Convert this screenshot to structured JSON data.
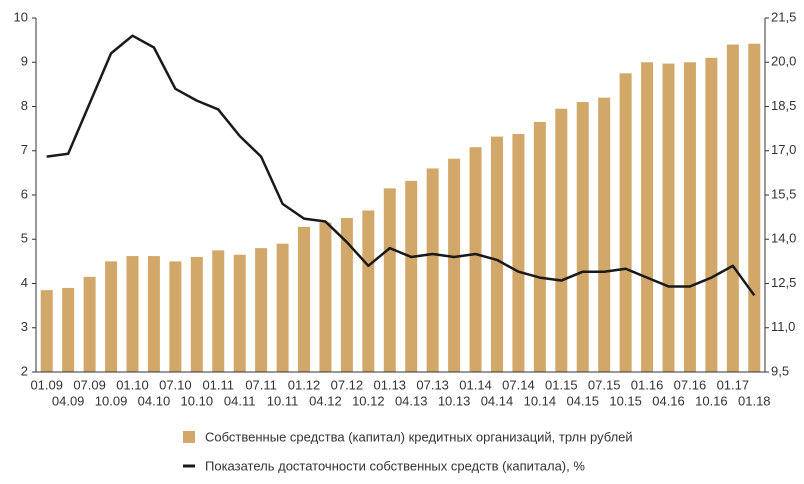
{
  "chart_data": {
    "type": "bar-line",
    "categories": [
      "01.09",
      "04.09",
      "07.09",
      "10.09",
      "01.10",
      "04.10",
      "07.10",
      "10.10",
      "01.11",
      "04.11",
      "07.11",
      "10.11",
      "01.12",
      "04.12",
      "07.12",
      "10.12",
      "01.13",
      "04.13",
      "07.13",
      "10.13",
      "01.14",
      "04.14",
      "07.14",
      "10.14",
      "01.15",
      "04.15",
      "07.15",
      "10.15",
      "01.16",
      "04.16",
      "07.16",
      "10.16",
      "01.17",
      "01.18"
    ],
    "series": [
      {
        "name": "Собственные средства (капитал) кредитных организаций, трлн рублей",
        "type": "bar",
        "color": "#d2a86a",
        "values": [
          3.85,
          3.9,
          4.15,
          4.5,
          4.62,
          4.62,
          4.5,
          4.6,
          4.75,
          4.65,
          4.8,
          4.9,
          5.28,
          5.38,
          5.48,
          5.65,
          6.15,
          6.32,
          6.6,
          6.82,
          7.08,
          7.32,
          7.38,
          7.65,
          7.95,
          8.1,
          8.2,
          8.75,
          9.0,
          8.97,
          9.0,
          9.1,
          9.4,
          9.42
        ]
      },
      {
        "name": "Показатель достаточности собственных средств (капитала), %",
        "type": "line",
        "color": "#1a1a1a",
        "axis": "y2",
        "values": [
          16.8,
          16.9,
          18.6,
          20.3,
          20.9,
          20.5,
          19.1,
          18.7,
          18.4,
          17.5,
          16.8,
          15.2,
          14.7,
          14.6,
          13.9,
          13.1,
          13.7,
          13.4,
          13.5,
          13.4,
          13.5,
          13.3,
          12.9,
          12.7,
          12.6,
          12.9,
          12.9,
          13.0,
          12.7,
          12.4,
          12.4,
          12.7,
          13.1,
          12.1
        ]
      }
    ],
    "ylim": [
      2,
      10
    ],
    "yticks": [
      2,
      3,
      4,
      5,
      6,
      7,
      8,
      9,
      10
    ],
    "y2lim": [
      9.5,
      21.5
    ],
    "y2ticks": [
      {
        "value": 9.5,
        "label": "9,5"
      },
      {
        "value": 11,
        "label": "11,0"
      },
      {
        "value": 12.5,
        "label": "12,5"
      },
      {
        "value": 14,
        "label": "14,0"
      },
      {
        "value": 15.5,
        "label": "15,5"
      },
      {
        "value": 17,
        "label": "17,0"
      },
      {
        "value": 18.5,
        "label": "18,5"
      },
      {
        "value": 20,
        "label": "20,0"
      },
      {
        "value": 21.5,
        "label": "21,5"
      }
    ]
  }
}
